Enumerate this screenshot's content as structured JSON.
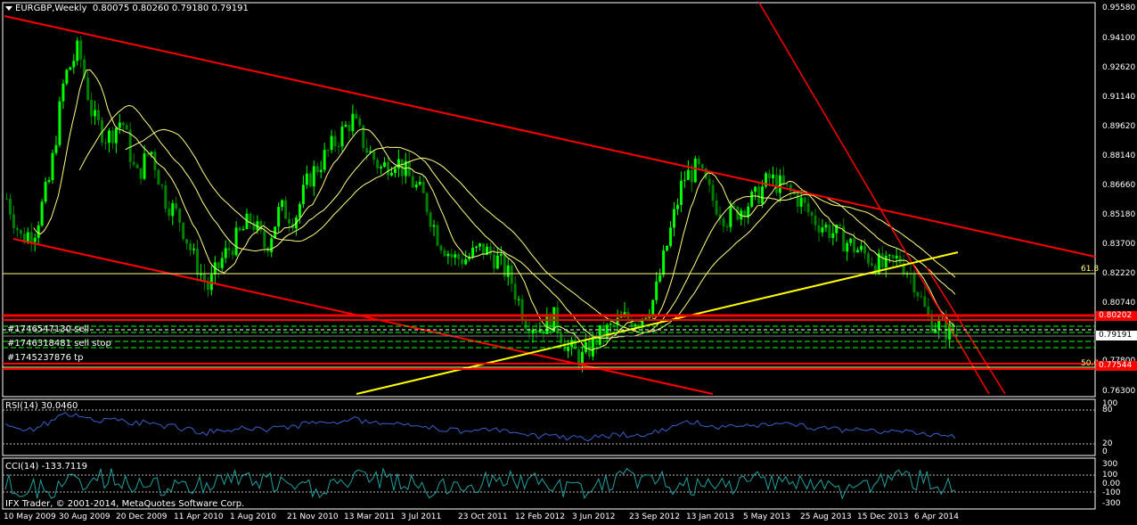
{
  "header": {
    "symbol_tf": "EURGBP,Weekly",
    "ohlc": "0.80075 0.80260 0.79180 0.79191"
  },
  "orders": [
    {
      "label": "#1746547130 sell"
    },
    {
      "label": "#1746318481 sell stop"
    },
    {
      "label": "#1745237876 tp"
    }
  ],
  "fib_levels": [
    {
      "label": "61.8"
    },
    {
      "label": "50.0"
    }
  ],
  "price_axis": [
    "0.95580",
    "0.94100",
    "0.92620",
    "0.91140",
    "0.89620",
    "0.88140",
    "0.86660",
    "0.85180",
    "0.83700",
    "0.82220",
    "0.80740",
    "0.77800",
    "0.76300"
  ],
  "price_tags": [
    {
      "value": "0.80202",
      "bg": "#ff0000",
      "fg": "#ffffff"
    },
    {
      "value": "0.79191",
      "bg": "#ffffff",
      "fg": "#000000"
    },
    {
      "value": "0.77544",
      "bg": "#ff0000",
      "fg": "#ffffff"
    }
  ],
  "rsi": {
    "label": "RSI(14) 30.0460",
    "levels": [
      "100",
      "80",
      "20",
      "0"
    ]
  },
  "cci": {
    "label": "CCI(14) -133.7119",
    "levels": [
      "300",
      "100",
      "0.00",
      "-100",
      "-300"
    ]
  },
  "copyright": "IFX Trader, © 2001-2014, MetaQuotes Software Corp.",
  "dates": [
    "10 May 2009",
    "30 Aug 2009",
    "20 Dec 2009",
    "11 Apr 2010",
    "1 Aug 2010",
    "21 Nov 2010",
    "13 Mar 2011",
    "3 Jul 2011",
    "23 Oct 2011",
    "12 Feb 2012",
    "3 Jun 2012",
    "23 Sep 2012",
    "13 Jan 2013",
    "5 May 2013",
    "25 Aug 2013",
    "15 Dec 2013",
    "6 Apr 2014"
  ],
  "colors": {
    "bull": "#00ff00",
    "bear": "#008000",
    "trend": "#ff0000",
    "ma": "#ffff80",
    "support": "#ffff00",
    "osc": "#3a5fcd",
    "cci": "#20a0a0"
  },
  "chart_data": {
    "type": "candlestick",
    "symbol": "EURGBP",
    "timeframe": "Weekly",
    "ylim": [
      0.763,
      0.9558
    ],
    "close_path": [
      0.86,
      0.84,
      0.845,
      0.87,
      0.92,
      0.935,
      0.9,
      0.89,
      0.9,
      0.87,
      0.885,
      0.86,
      0.85,
      0.83,
      0.815,
      0.83,
      0.84,
      0.85,
      0.835,
      0.855,
      0.85,
      0.87,
      0.88,
      0.89,
      0.9,
      0.885,
      0.875,
      0.88,
      0.87,
      0.86,
      0.84,
      0.83,
      0.83,
      0.835,
      0.83,
      0.82,
      0.8,
      0.795,
      0.8,
      0.785,
      0.78,
      0.79,
      0.795,
      0.8,
      0.8,
      0.81,
      0.84,
      0.87,
      0.875,
      0.86,
      0.85,
      0.855,
      0.86,
      0.87,
      0.865,
      0.86,
      0.85,
      0.845,
      0.84,
      0.835,
      0.83,
      0.825,
      0.83,
      0.82,
      0.8,
      0.795,
      0.7919
    ]
  }
}
